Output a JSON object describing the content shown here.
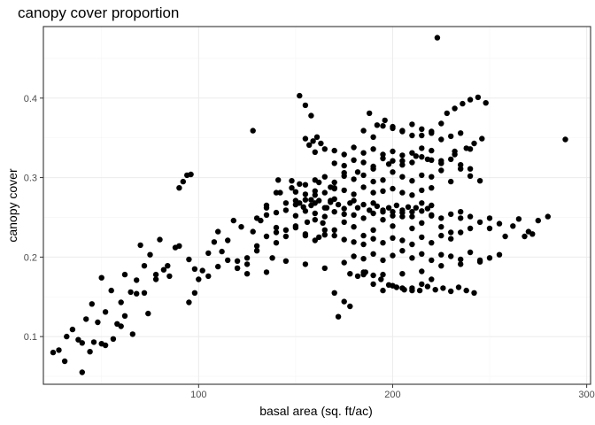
{
  "chart_data": {
    "type": "scatter",
    "title": "canopy cover proportion",
    "xlabel": "basal area (sq. ft/ac)",
    "ylabel": "canopy cover",
    "xlim": [
      20,
      302
    ],
    "ylim": [
      0.04,
      0.49
    ],
    "x_ticks": [
      100,
      200,
      300
    ],
    "x_tick_labels": [
      "100",
      "200",
      "300"
    ],
    "y_ticks": [
      0.1,
      0.2,
      0.3,
      0.4
    ],
    "y_tick_labels": [
      "0.1",
      "0.2",
      "0.3",
      "0.4"
    ],
    "grid": true,
    "legend": "none",
    "point_color": "#000000",
    "series": [
      {
        "x": [
          25,
          28,
          31,
          32,
          35,
          38,
          40,
          42,
          45,
          48,
          50,
          52,
          55,
          58,
          60,
          62,
          65,
          68,
          70,
          72,
          75,
          78,
          80,
          85,
          88,
          40,
          44,
          50,
          56,
          62,
          68,
          74,
          82,
          46,
          52,
          60,
          66,
          72,
          78,
          84,
          90,
          95,
          98,
          95,
          98,
          100,
          102,
          105,
          108,
          110,
          112,
          115,
          118,
          120,
          122,
          125,
          128,
          130,
          132,
          135,
          138,
          140,
          142,
          145,
          148,
          150,
          152,
          154,
          156,
          158,
          160,
          162,
          164,
          166,
          168,
          170,
          105,
          110,
          115,
          120,
          125,
          130,
          135,
          140,
          145,
          150,
          155,
          160,
          165,
          170,
          175,
          180,
          185,
          190,
          195,
          200,
          205,
          210,
          215,
          220,
          225,
          230,
          235,
          240,
          245,
          250,
          150,
          152,
          155,
          158,
          160,
          162,
          165,
          168,
          170,
          172,
          175,
          178,
          180,
          182,
          185,
          188,
          190,
          192,
          195,
          198,
          200,
          202,
          205,
          208,
          210,
          212,
          215,
          218,
          220,
          160,
          165,
          170,
          175,
          180,
          185,
          190,
          195,
          200,
          205,
          210,
          215,
          220,
          225,
          230,
          235,
          240,
          245,
          150,
          155,
          160,
          165,
          170,
          175,
          180,
          185,
          190,
          195,
          200,
          205,
          210,
          215,
          220,
          170,
          175,
          180,
          185,
          190,
          195,
          200,
          205,
          210,
          215,
          220,
          225,
          230,
          235,
          240,
          160,
          165,
          170,
          175,
          180,
          185,
          190,
          195,
          200,
          205,
          210,
          215,
          220,
          140,
          145,
          150,
          155,
          160,
          165,
          170,
          175,
          180,
          185,
          190,
          195,
          200,
          205,
          210,
          215,
          220,
          225,
          230,
          235,
          180,
          185,
          190,
          195,
          200,
          205,
          210,
          215,
          220,
          225,
          230,
          235,
          240,
          245,
          250,
          255,
          130,
          135,
          140,
          145,
          150,
          155,
          160,
          165,
          170,
          175,
          180,
          185,
          190,
          195,
          200,
          205,
          210,
          215,
          220,
          225,
          230,
          235,
          240,
          152,
          155,
          158,
          188,
          192,
          196,
          200,
          205,
          210,
          215,
          220,
          225,
          230,
          235,
          155,
          157,
          159,
          161,
          163,
          185,
          190,
          195,
          200,
          205,
          210,
          215,
          220,
          225,
          228,
          232,
          236,
          240,
          244,
          248,
          178,
          182,
          186,
          190,
          194,
          198,
          202,
          206,
          210,
          214,
          218,
          222,
          226,
          230,
          234,
          238,
          242,
          250,
          255,
          258,
          262,
          265,
          268,
          270,
          272,
          275,
          280,
          225,
          232,
          238,
          242,
          246,
          120,
          125,
          135,
          145,
          155,
          165,
          175,
          185,
          195,
          205,
          215,
          225,
          235,
          245,
          170,
          172,
          175,
          178,
          185,
          190,
          195,
          200,
          205,
          210,
          215,
          220,
          135,
          140,
          148,
          155,
          162,
          168,
          175,
          182,
          190,
          198,
          205,
          212,
          218,
          225,
          232,
          240,
          289,
          223,
          90,
          92,
          94,
          96,
          128,
          141
        ],
        "y": [
          0.08,
          0.083,
          0.069,
          0.1,
          0.109,
          0.096,
          0.092,
          0.122,
          0.141,
          0.118,
          0.174,
          0.131,
          0.158,
          0.116,
          0.143,
          0.178,
          0.156,
          0.171,
          0.215,
          0.189,
          0.203,
          0.178,
          0.222,
          0.176,
          0.212,
          0.055,
          0.081,
          0.091,
          0.097,
          0.126,
          0.154,
          0.129,
          0.184,
          0.093,
          0.089,
          0.113,
          0.103,
          0.155,
          0.172,
          0.189,
          0.214,
          0.197,
          0.185,
          0.143,
          0.155,
          0.172,
          0.183,
          0.205,
          0.219,
          0.232,
          0.207,
          0.221,
          0.246,
          0.195,
          0.238,
          0.179,
          0.232,
          0.214,
          0.246,
          0.262,
          0.199,
          0.237,
          0.281,
          0.268,
          0.296,
          0.271,
          0.292,
          0.263,
          0.244,
          0.272,
          0.278,
          0.225,
          0.243,
          0.262,
          0.271,
          0.287,
          0.176,
          0.188,
          0.196,
          0.186,
          0.199,
          0.208,
          0.226,
          0.218,
          0.234,
          0.239,
          0.227,
          0.247,
          0.234,
          0.227,
          0.244,
          0.238,
          0.216,
          0.234,
          0.247,
          0.239,
          0.251,
          0.236,
          0.243,
          0.252,
          0.238,
          0.231,
          0.249,
          0.236,
          0.244,
          0.249,
          0.266,
          0.268,
          0.272,
          0.265,
          0.268,
          0.271,
          0.262,
          0.269,
          0.273,
          0.266,
          0.261,
          0.268,
          0.271,
          0.262,
          0.266,
          0.259,
          0.268,
          0.264,
          0.257,
          0.262,
          0.257,
          0.265,
          0.259,
          0.263,
          0.257,
          0.262,
          0.268,
          0.261,
          0.265,
          0.297,
          0.301,
          0.294,
          0.306,
          0.298,
          0.303,
          0.295,
          0.297,
          0.307,
          0.301,
          0.296,
          0.303,
          0.301,
          0.309,
          0.295,
          0.311,
          0.302,
          0.296,
          0.282,
          0.279,
          0.283,
          0.281,
          0.286,
          0.284,
          0.279,
          0.288,
          0.281,
          0.283,
          0.286,
          0.281,
          0.278,
          0.284,
          0.287,
          0.318,
          0.315,
          0.322,
          0.319,
          0.314,
          0.324,
          0.321,
          0.316,
          0.319,
          0.326,
          0.322,
          0.318,
          0.323,
          0.316,
          0.311,
          0.332,
          0.336,
          0.334,
          0.329,
          0.338,
          0.331,
          0.336,
          0.329,
          0.333,
          0.328,
          0.331,
          0.337,
          0.334,
          0.231,
          0.226,
          0.237,
          0.229,
          0.221,
          0.228,
          0.234,
          0.222,
          0.219,
          0.227,
          0.223,
          0.218,
          0.224,
          0.221,
          0.216,
          0.225,
          0.218,
          0.227,
          0.223,
          0.231,
          0.201,
          0.198,
          0.204,
          0.196,
          0.202,
          0.208,
          0.199,
          0.204,
          0.196,
          0.203,
          0.201,
          0.197,
          0.206,
          0.194,
          0.199,
          0.203,
          0.249,
          0.253,
          0.256,
          0.259,
          0.252,
          0.258,
          0.255,
          0.251,
          0.257,
          0.254,
          0.253,
          0.249,
          0.255,
          0.259,
          0.252,
          0.256,
          0.251,
          0.258,
          0.253,
          0.249,
          0.254,
          0.257,
          0.251,
          0.403,
          0.391,
          0.378,
          0.381,
          0.366,
          0.372,
          0.364,
          0.359,
          0.353,
          0.361,
          0.356,
          0.348,
          0.352,
          0.356,
          0.349,
          0.341,
          0.346,
          0.351,
          0.343,
          0.359,
          0.351,
          0.365,
          0.362,
          0.358,
          0.367,
          0.353,
          0.358,
          0.368,
          0.381,
          0.387,
          0.393,
          0.398,
          0.401,
          0.394,
          0.179,
          0.176,
          0.181,
          0.177,
          0.172,
          0.165,
          0.162,
          0.159,
          0.161,
          0.158,
          0.163,
          0.159,
          0.161,
          0.157,
          0.162,
          0.158,
          0.155,
          0.236,
          0.242,
          0.226,
          0.239,
          0.248,
          0.226,
          0.232,
          0.229,
          0.246,
          0.251,
          0.321,
          0.329,
          0.337,
          0.343,
          0.349,
          0.186,
          0.191,
          0.181,
          0.195,
          0.191,
          0.186,
          0.193,
          0.181,
          0.178,
          0.179,
          0.182,
          0.189,
          0.191,
          0.196,
          0.155,
          0.125,
          0.144,
          0.138,
          0.178,
          0.166,
          0.158,
          0.164,
          0.161,
          0.158,
          0.166,
          0.172,
          0.265,
          0.281,
          0.287,
          0.291,
          0.294,
          0.288,
          0.302,
          0.307,
          0.311,
          0.317,
          0.321,
          0.327,
          0.323,
          0.318,
          0.333,
          0.336,
          0.348,
          0.476,
          0.287,
          0.295,
          0.303,
          0.304,
          0.359,
          0.297
        ]
      }
    ]
  }
}
